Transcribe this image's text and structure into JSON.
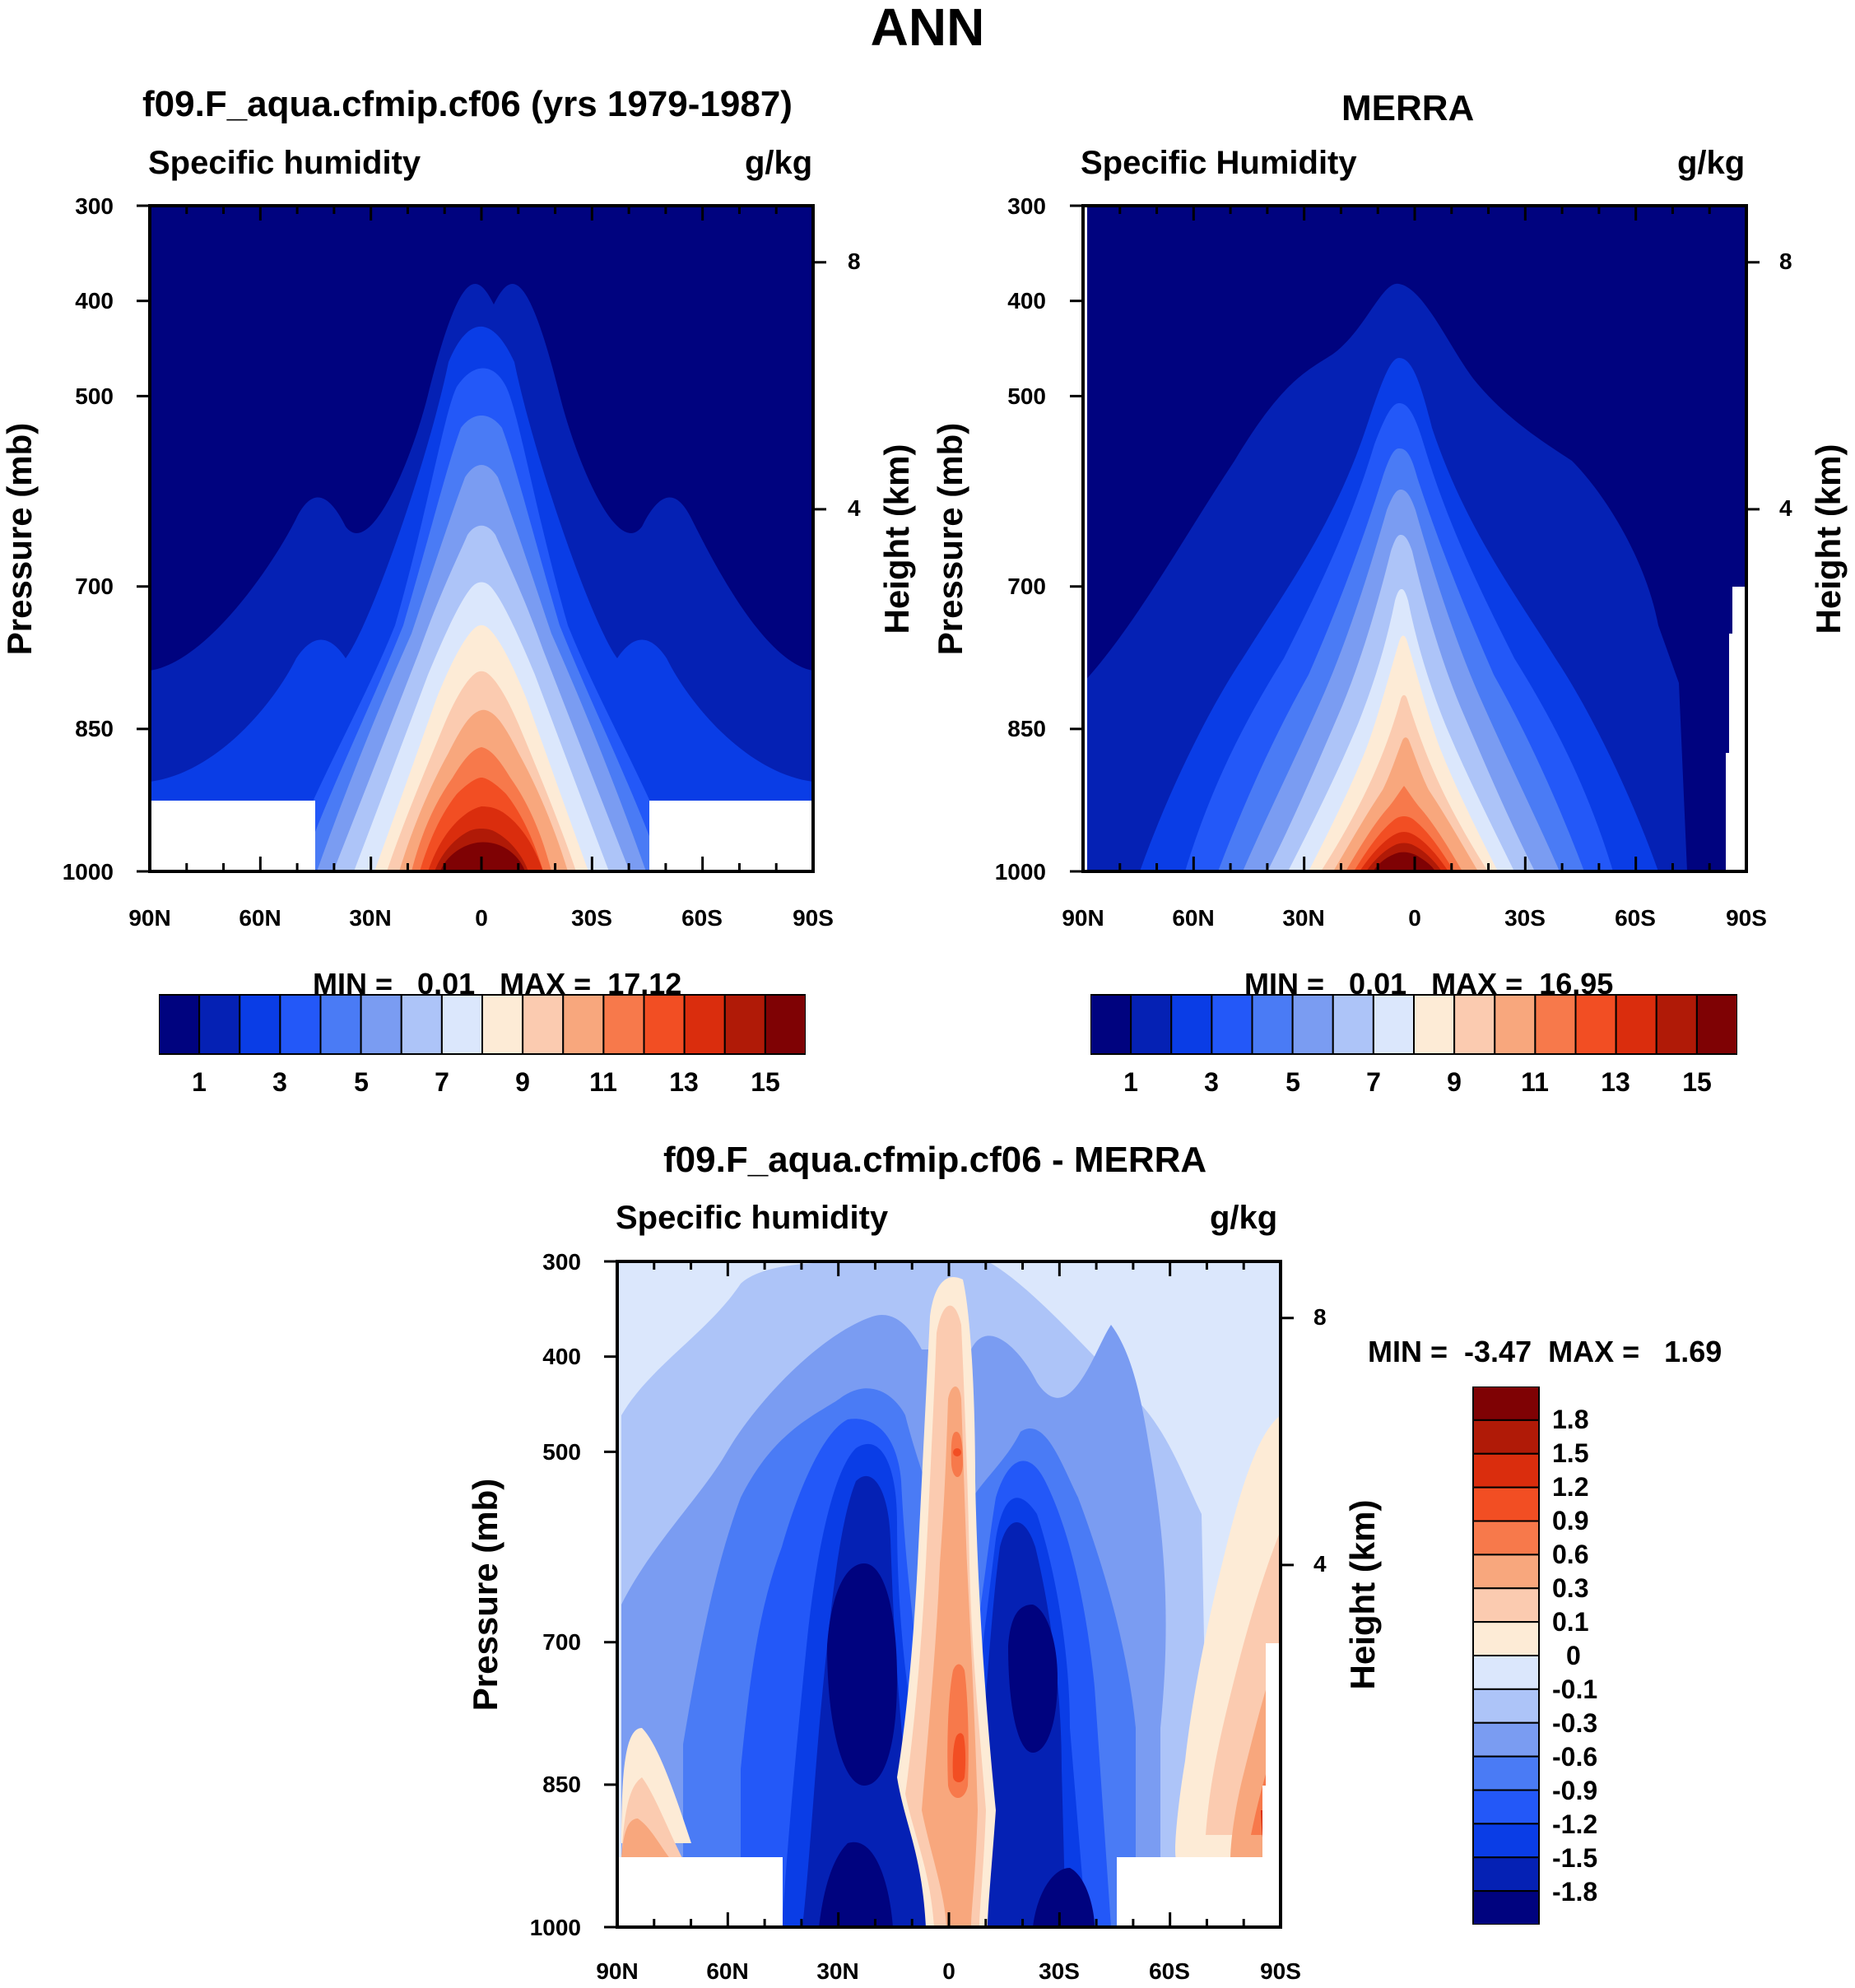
{
  "figure": {
    "title": "ANN"
  },
  "chart_data": [
    {
      "type": "contour",
      "title": "f09.F_aqua.cfmip.cf06 (yrs 1979-1987)",
      "left_label": "Specific humidity",
      "right_label": "g/kg",
      "ylabel": "Pressure (mb)",
      "ylabel_right": "Height (km)",
      "x_ticks": [
        "90N",
        "60N",
        "30N",
        "0",
        "30S",
        "60S",
        "90S"
      ],
      "y_ticks": [
        "300",
        "400",
        "500",
        "700",
        "850",
        "1000"
      ],
      "height_ticks": [
        "8",
        "4"
      ],
      "min_label": "MIN =",
      "min_value": "0.01",
      "max_label": "MAX =",
      "max_value": "17.12",
      "colorbar_labels": [
        "1",
        "3",
        "5",
        "7",
        "9",
        "11",
        "13",
        "15"
      ],
      "colors": [
        "#00037f",
        "#0521b4",
        "#0a3de6",
        "#2358f8",
        "#4a7bf5",
        "#7a9cf2",
        "#adc4f8",
        "#dbe7fc",
        "#fdebd6",
        "#fbcbb0",
        "#f8a77d",
        "#f7794b",
        "#f24e23",
        "#da2d0d",
        "#b01a07",
        "#7f0204"
      ]
    },
    {
      "type": "contour",
      "title": "MERRA",
      "left_label": "Specific Humidity",
      "right_label": "g/kg",
      "ylabel": "Pressure (mb)",
      "ylabel_right": "Height (km)",
      "x_ticks": [
        "90N",
        "60N",
        "30N",
        "0",
        "30S",
        "60S",
        "90S"
      ],
      "y_ticks": [
        "300",
        "400",
        "500",
        "700",
        "850",
        "1000"
      ],
      "height_ticks": [
        "8",
        "4"
      ],
      "min_label": "MIN =",
      "min_value": "0.01",
      "max_label": "MAX =",
      "max_value": "16.95",
      "colorbar_labels": [
        "1",
        "3",
        "5",
        "7",
        "9",
        "11",
        "13",
        "15"
      ],
      "colors": [
        "#00037f",
        "#0521b4",
        "#0a3de6",
        "#2358f8",
        "#4a7bf5",
        "#7a9cf2",
        "#adc4f8",
        "#dbe7fc",
        "#fdebd6",
        "#fbcbb0",
        "#f8a77d",
        "#f7794b",
        "#f24e23",
        "#da2d0d",
        "#b01a07",
        "#7f0204"
      ]
    },
    {
      "type": "contour",
      "title": "f09.F_aqua.cfmip.cf06 - MERRA",
      "left_label": "Specific humidity",
      "right_label": "g/kg",
      "ylabel": "Pressure (mb)",
      "ylabel_right": "Height (km)",
      "x_ticks": [
        "90N",
        "60N",
        "30N",
        "0",
        "30S",
        "60S",
        "90S"
      ],
      "y_ticks": [
        "300",
        "400",
        "500",
        "700",
        "850",
        "1000"
      ],
      "height_ticks": [
        "8",
        "4"
      ],
      "min_label": "MIN =",
      "min_value": "-3.47",
      "max_label": "MAX =",
      "max_value": "1.69",
      "colorbar_labels": [
        "1.8",
        "1.5",
        "1.2",
        "0.9",
        "0.6",
        "0.3",
        "0.1",
        "0",
        "-0.1",
        "-0.3",
        "-0.6",
        "-0.9",
        "-1.2",
        "-1.5",
        "-1.8"
      ],
      "colors": [
        "#7f0204",
        "#b01a07",
        "#da2d0d",
        "#f24e23",
        "#f7794b",
        "#f8a77d",
        "#fbcbb0",
        "#fdebd6",
        "#dbe7fc",
        "#adc4f8",
        "#7a9cf2",
        "#4a7bf5",
        "#2358f8",
        "#0a3de6",
        "#0521b4",
        "#00037f"
      ]
    }
  ]
}
